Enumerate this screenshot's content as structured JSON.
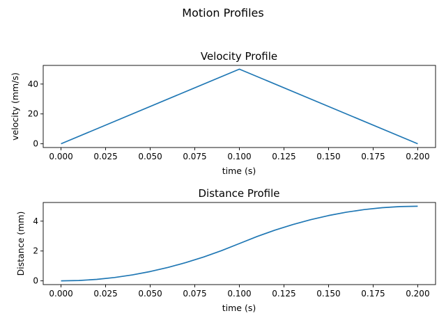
{
  "figure": {
    "suptitle": "Motion Profiles"
  },
  "chart_data": [
    {
      "type": "line",
      "title": "Velocity Profile",
      "xlabel": "time (s)",
      "ylabel": "velocity (mm/s)",
      "xlim": [
        -0.01,
        0.21
      ],
      "ylim": [
        -2.5,
        52.5
      ],
      "xticks": [
        0.0,
        0.025,
        0.05,
        0.075,
        0.1,
        0.125,
        0.15,
        0.175,
        0.2
      ],
      "xtick_labels": [
        "0.000",
        "0.025",
        "0.050",
        "0.075",
        "0.100",
        "0.125",
        "0.150",
        "0.175",
        "0.200"
      ],
      "yticks": [
        0,
        20,
        40
      ],
      "ytick_labels": [
        "0",
        "20",
        "40"
      ],
      "grid": false,
      "series": [
        {
          "color": "#1f77b4",
          "x": [
            0.0,
            0.1,
            0.2
          ],
          "y": [
            0,
            50,
            0
          ]
        }
      ]
    },
    {
      "type": "line",
      "title": "Distance Profile",
      "xlabel": "time (s)",
      "ylabel": "Distance (mm)",
      "xlim": [
        -0.01,
        0.21
      ],
      "ylim": [
        -0.25,
        5.25
      ],
      "xticks": [
        0.0,
        0.025,
        0.05,
        0.075,
        0.1,
        0.125,
        0.15,
        0.175,
        0.2
      ],
      "xtick_labels": [
        "0.000",
        "0.025",
        "0.050",
        "0.075",
        "0.100",
        "0.125",
        "0.150",
        "0.175",
        "0.200"
      ],
      "yticks": [
        0,
        2,
        4
      ],
      "ytick_labels": [
        "0",
        "2",
        "4"
      ],
      "grid": false,
      "series": [
        {
          "color": "#1f77b4",
          "x": [
            0.0,
            0.01,
            0.02,
            0.03,
            0.04,
            0.05,
            0.06,
            0.07,
            0.08,
            0.09,
            0.1,
            0.11,
            0.12,
            0.13,
            0.14,
            0.15,
            0.16,
            0.17,
            0.18,
            0.19,
            0.2
          ],
          "y": [
            0,
            0.025,
            0.1,
            0.225,
            0.4,
            0.625,
            0.9,
            1.225,
            1.6,
            2.025,
            2.5,
            2.975,
            3.4,
            3.775,
            4.1,
            4.375,
            4.6,
            4.775,
            4.9,
            4.975,
            5.0
          ]
        }
      ]
    }
  ]
}
